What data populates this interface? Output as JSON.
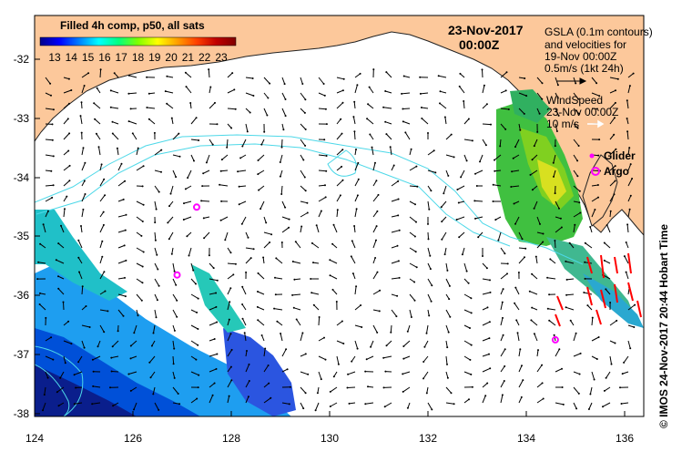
{
  "map": {
    "colorbar": {
      "title": "Filled 4h comp, p50, all sats",
      "ticks": [
        "13",
        "14",
        "15",
        "16",
        "17",
        "18",
        "19",
        "20",
        "21",
        "22",
        "23"
      ],
      "colors": [
        "#00008b",
        "#0000ff",
        "#0080ff",
        "#00ffff",
        "#00ff80",
        "#80ff00",
        "#ffff00",
        "#ffa000",
        "#ff4000",
        "#c00000",
        "#800000"
      ]
    },
    "date_line1": "23-Nov-2017",
    "date_line2": "00:00Z",
    "gsla": {
      "line1": "GSLA (0.1m contours)",
      "line2": "and velocities for",
      "line3": "19-Nov 00:00Z",
      "scale": "0.5m/s (1kt 24h)"
    },
    "wind": {
      "line1": "WindSpeed",
      "line2": "23-Nov 00:00Z",
      "scale": "10 m/s"
    },
    "legend": {
      "glider": "Glider",
      "argo": "Argo"
    },
    "credit": "© IMOS 24-Nov-2017 20:44 Hobart Time",
    "lat_labels": [
      "-32",
      "-33",
      "-34",
      "-35",
      "-36",
      "-37",
      "-38"
    ],
    "lon_labels": [
      "124",
      "126",
      "128",
      "130",
      "132",
      "134",
      "136"
    ],
    "argo_floats": [
      {
        "lon": 127.3,
        "lat": -34.5
      },
      {
        "lon": 126.9,
        "lat": -35.65
      },
      {
        "lon": 134.6,
        "lat": -36.75
      }
    ],
    "colors": {
      "land": "#fcc89b",
      "ocean": "#ffffff",
      "contour": "#4dd8e8",
      "argo": "#ff00ff",
      "wind": "#ff0000"
    }
  }
}
